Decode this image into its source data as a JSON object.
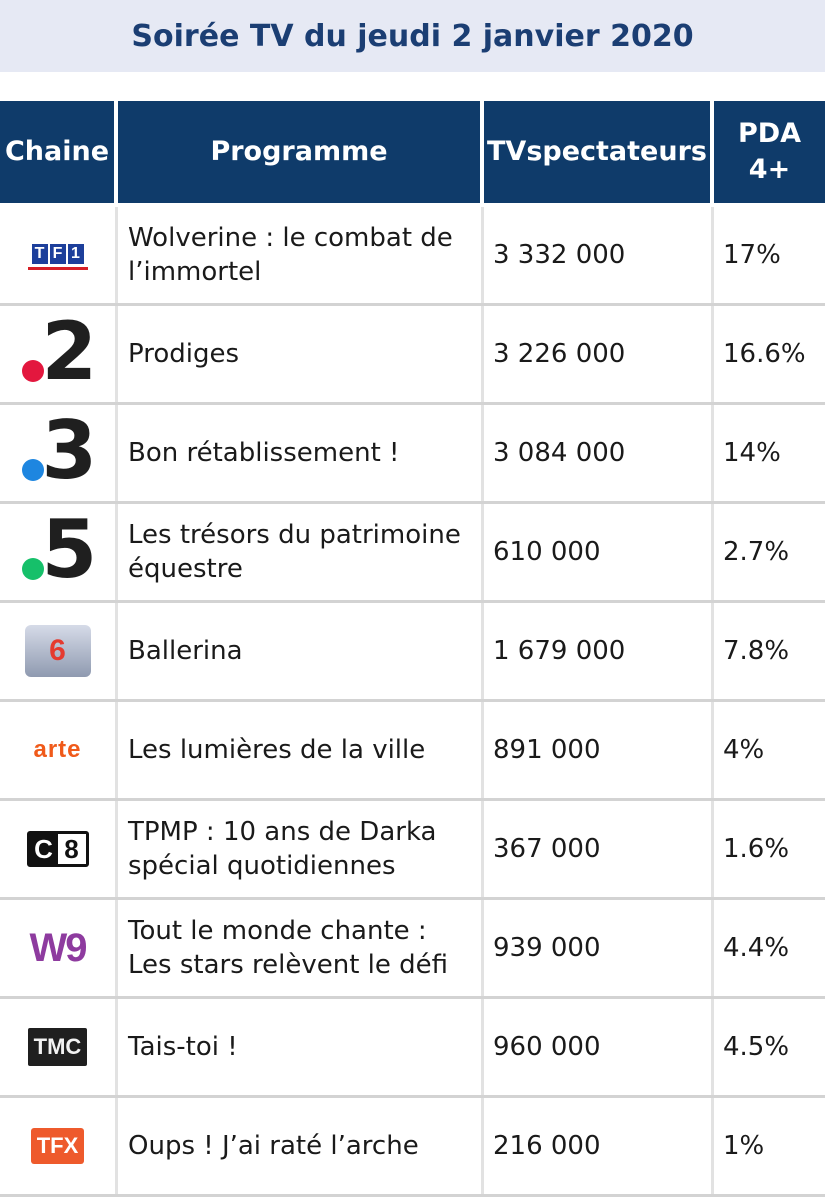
{
  "title": "Soirée TV du jeudi 2 janvier 2020",
  "headers": {
    "chaine": "Chaine",
    "programme": "Programme",
    "tvspectateurs": "TVspectateurs",
    "pda_line1": "PDA",
    "pda_line2": "4+"
  },
  "rows": [
    {
      "channel": "TF1",
      "logo_text": [
        "T",
        "F",
        "1"
      ],
      "programme": "Wolverine : le combat de l’immortel",
      "spectateurs": "3 332 000",
      "pda": "17%"
    },
    {
      "channel": "France 2",
      "logo_text": "2",
      "dot_color": "#e3173e",
      "programme": "Prodiges",
      "spectateurs": "3 226 000",
      "pda": "16.6%"
    },
    {
      "channel": "France 3",
      "logo_text": "3",
      "dot_color": "#1e86e0",
      "programme": "Bon rétablissement !",
      "spectateurs": "3 084 000",
      "pda": "14%"
    },
    {
      "channel": "France 5",
      "logo_text": "5",
      "dot_color": "#16c06a",
      "programme": "Les trésors du patrimoine équestre",
      "spectateurs": "610 000",
      "pda": "2.7%"
    },
    {
      "channel": "M6",
      "logo_text": "6",
      "programme": "Ballerina",
      "spectateurs": "1 679 000",
      "pda": "7.8%"
    },
    {
      "channel": "Arte",
      "logo_text": "arte",
      "programme": "Les lumières de la ville",
      "spectateurs": "891 000",
      "pda": "4%"
    },
    {
      "channel": "C8",
      "logo_text": [
        "C",
        "8"
      ],
      "programme": "TPMP : 10 ans de Darka spécial quotidiennes",
      "spectateurs": "367 000",
      "pda": "1.6%"
    },
    {
      "channel": "W9",
      "logo_text": "W9",
      "programme": "Tout le monde chante : Les stars relèvent le défi",
      "spectateurs": "939 000",
      "pda": "4.4%"
    },
    {
      "channel": "TMC",
      "logo_text": "TMC",
      "programme": "Tais-toi !",
      "spectateurs": "960 000",
      "pda": "4.5%"
    },
    {
      "channel": "TFX",
      "logo_text": "TFX",
      "programme": "Oups ! J’ai raté l’arche",
      "spectateurs": "216 000",
      "pda": "1%"
    }
  ]
}
